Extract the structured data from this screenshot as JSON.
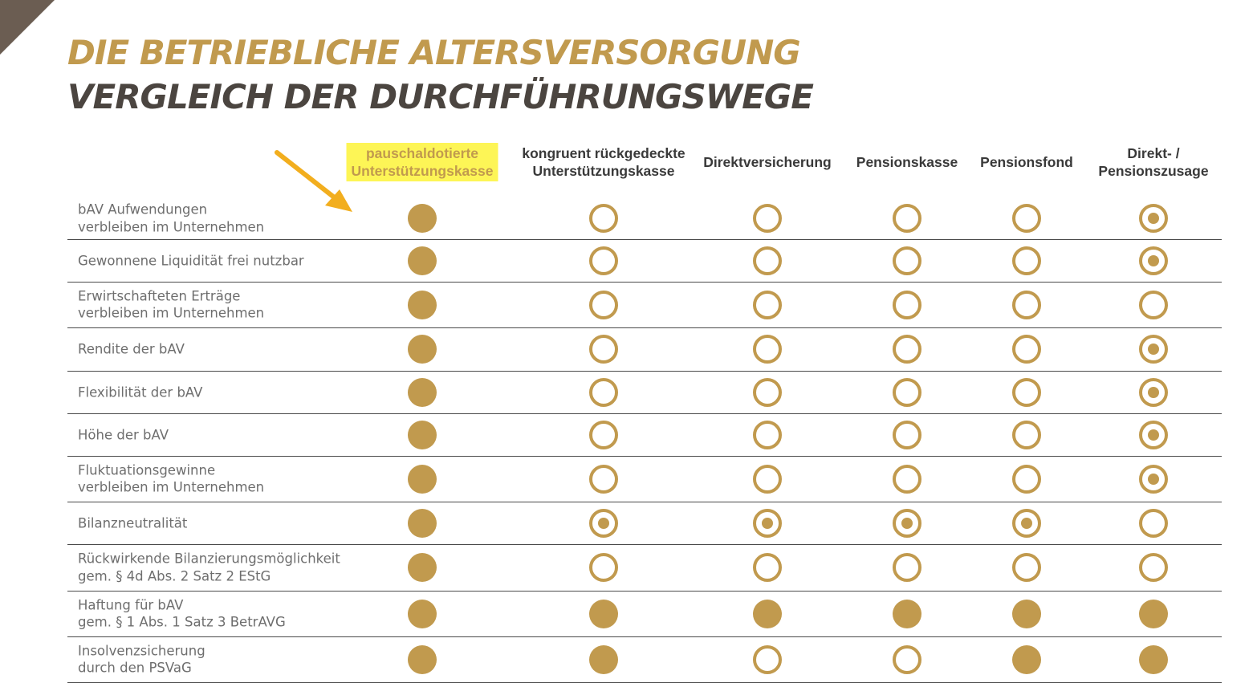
{
  "title_line1": "DIE BETRIEBLICHE ALTERSVERSORGUNG",
  "title_line2": "VERGLEICH DER DURCHFÜHRUNGSWEGE",
  "columns": [
    "pauschaldotierte\nUnterstützungskasse",
    "kongruent rückgedeckte\nUnterstützungskasse",
    "Direktversicherung",
    "Pensionskasse",
    "Pensionsfond",
    "Direkt- /\nPensionszusage"
  ],
  "highlighted_column": 0,
  "colors": {
    "gold": "#c19a4e",
    "title_dark": "#4b4540",
    "highlight": "#fdf556",
    "arrow": "#f2ae1e"
  },
  "legend_codes": {
    "F": "filled",
    "O": "empty",
    "D": "dot"
  },
  "rows": [
    {
      "label": "bAV Aufwendungen\nverbleiben im Unternehmen",
      "marks": "FOOOOD"
    },
    {
      "label": "Gewonnene Liquidität frei nutzbar",
      "marks": "FOOOOD"
    },
    {
      "label": "Erwirtschafteten Erträge\nverbleiben im Unternehmen",
      "marks": "FOOOOO"
    },
    {
      "label": "Rendite der bAV",
      "marks": "FOOOOD"
    },
    {
      "label": "Flexibilität der bAV",
      "marks": "FOOOOD"
    },
    {
      "label": "Höhe der bAV",
      "marks": "FOOOOD"
    },
    {
      "label": "Fluktuationsgewinne\nverbleiben im Unternehmen",
      "marks": "FOOOOD"
    },
    {
      "label": "Bilanzneutralität",
      "marks": "FDDDDO"
    },
    {
      "label": "Rückwirkende Bilanzierungsmöglichkeit\ngem. § 4d Abs. 2 Satz 2 EStG",
      "marks": "FOOOOO"
    },
    {
      "label": "Haftung für bAV\ngem. § 1 Abs. 1 Satz 3 BetrAVG",
      "marks": "FFFFFF"
    },
    {
      "label": "Insolvenzsicherung\ndurch den PSVaG",
      "marks": "FFOOFF"
    }
  ]
}
